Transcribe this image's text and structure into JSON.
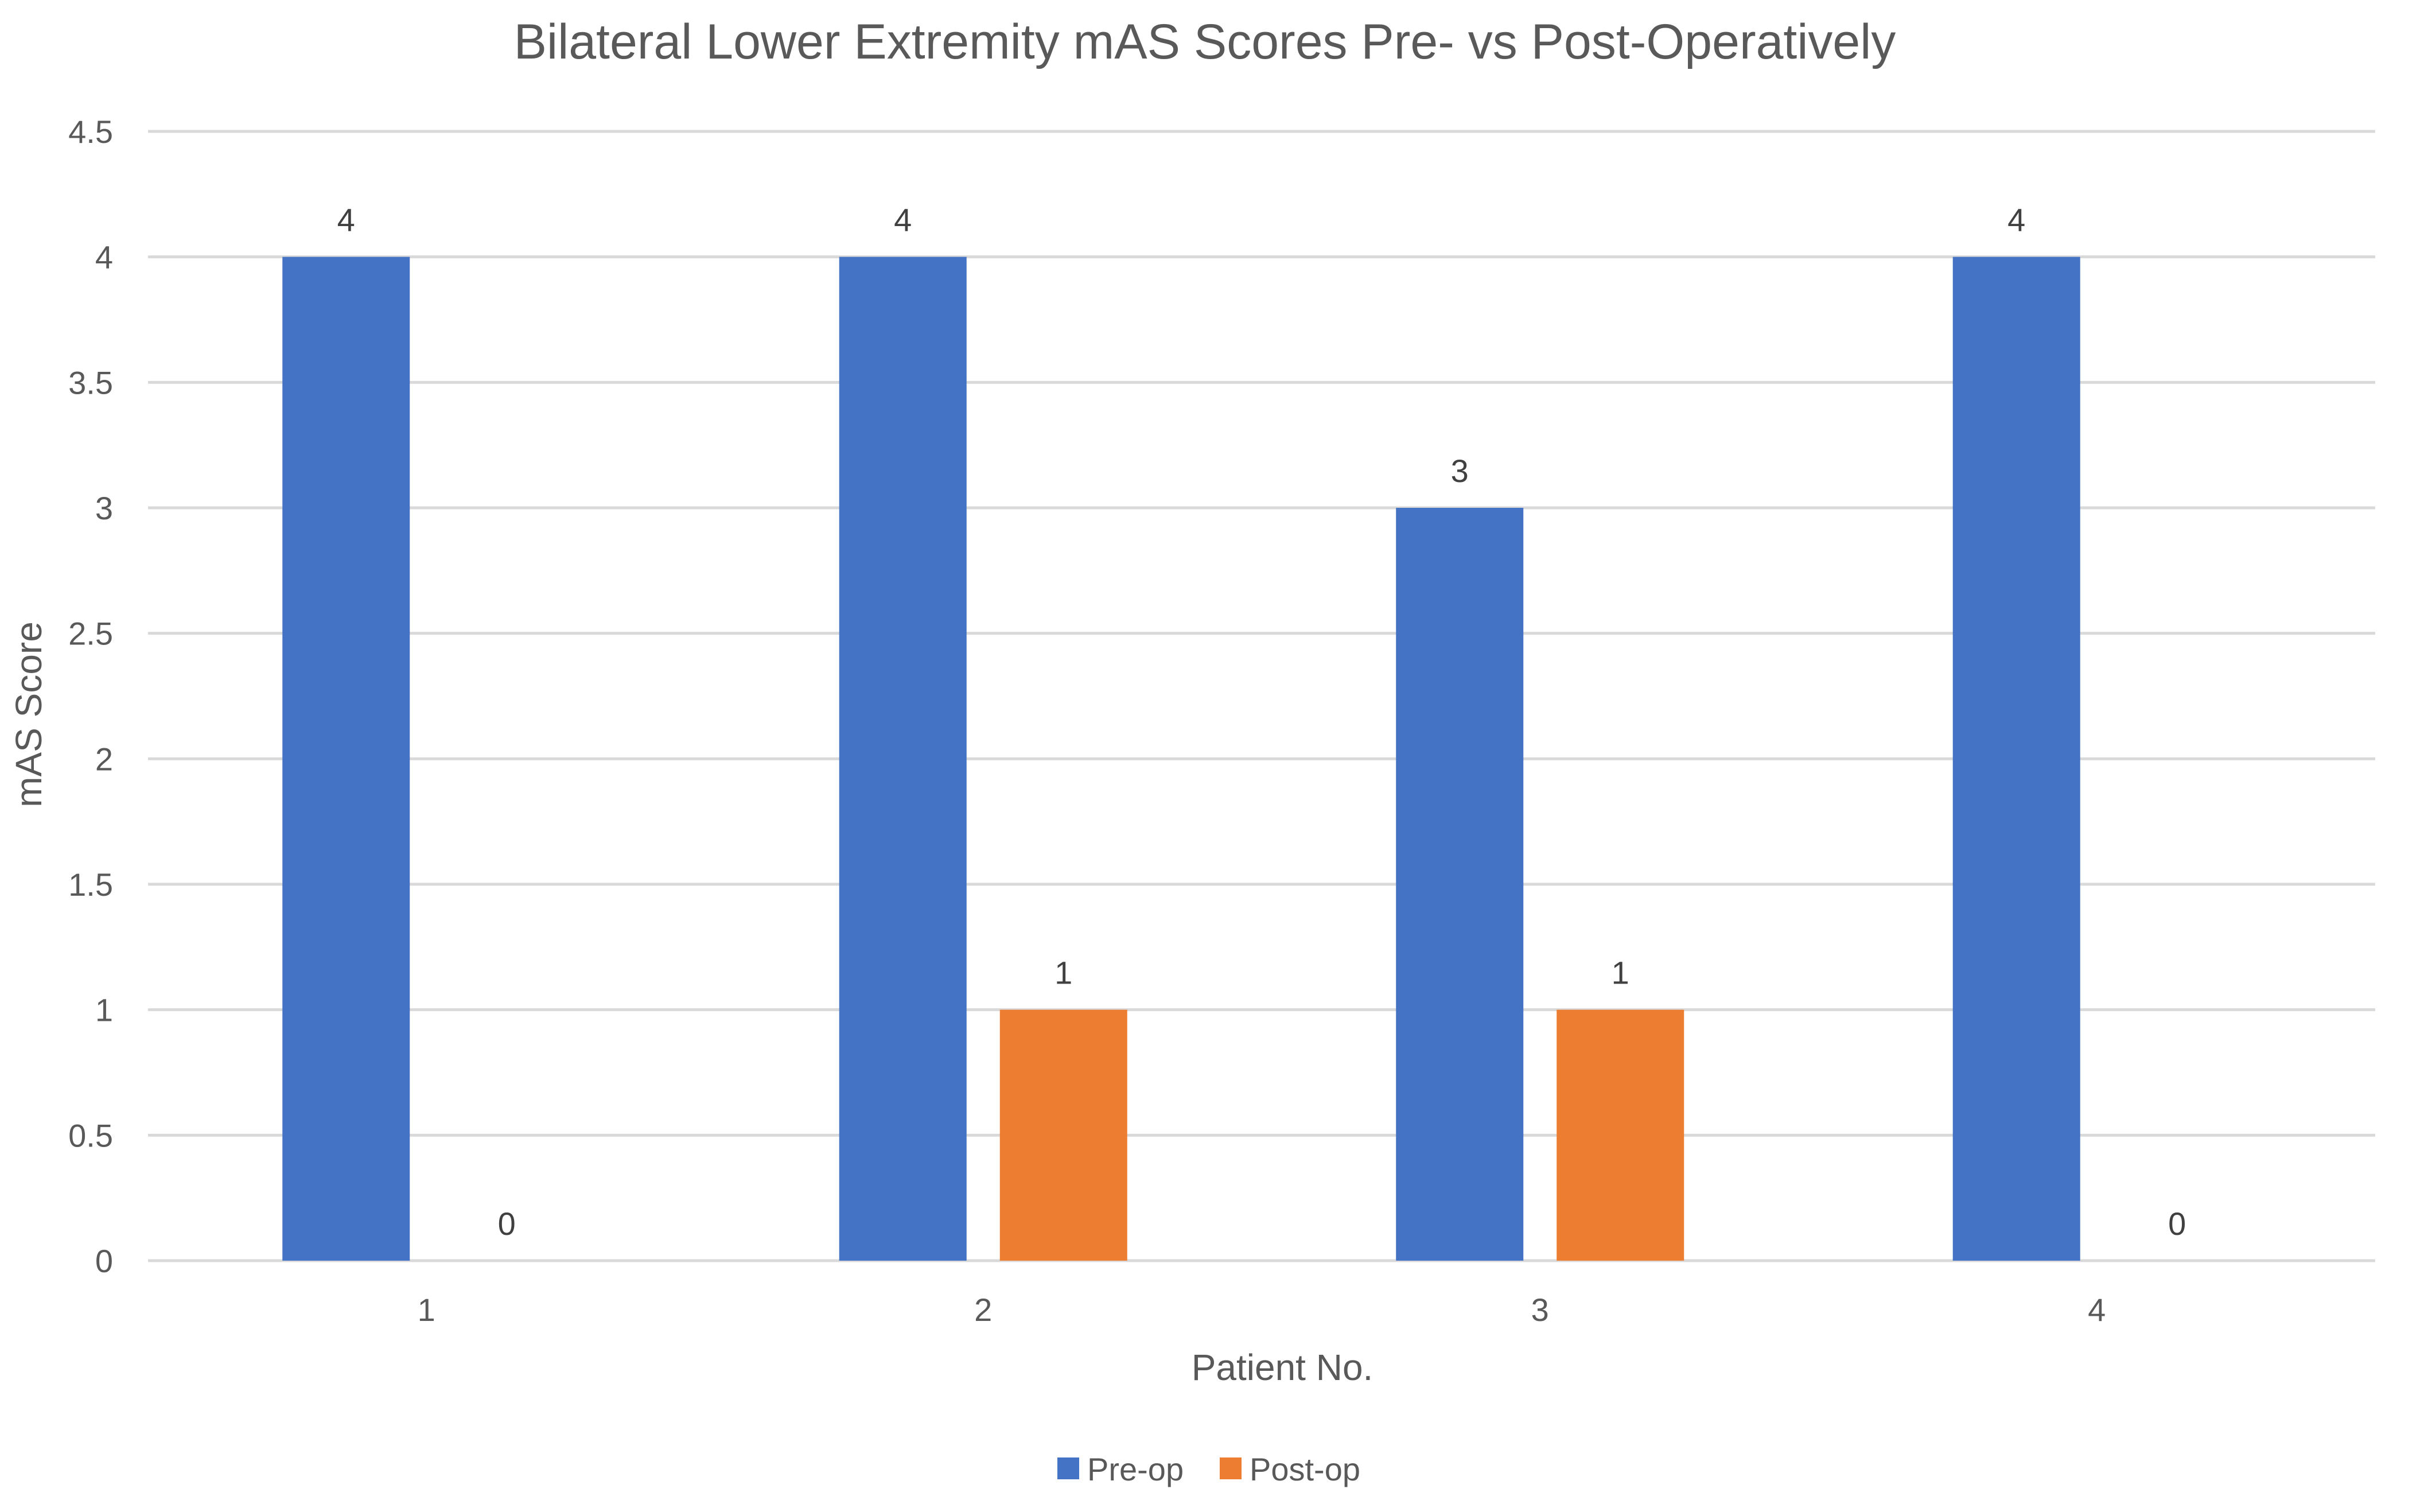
{
  "chart_data": {
    "type": "bar",
    "title": "Bilateral Lower Extremity mAS Scores Pre- vs Post-Operatively",
    "xlabel": "Patient No.",
    "ylabel": "mAS Score",
    "categories": [
      "1",
      "2",
      "3",
      "4"
    ],
    "ylim": [
      0,
      4.5
    ],
    "yticks": [
      "0",
      "0.5",
      "1",
      "1.5",
      "2",
      "2.5",
      "3",
      "3.5",
      "4",
      "4.5"
    ],
    "grid": true,
    "legend_position": "bottom",
    "series": [
      {
        "name": "Pre-op",
        "color": "#4472c4",
        "values": [
          4,
          4,
          3,
          4
        ]
      },
      {
        "name": "Post-op",
        "color": "#ed7d31",
        "values": [
          0,
          1,
          1,
          0
        ]
      }
    ]
  }
}
